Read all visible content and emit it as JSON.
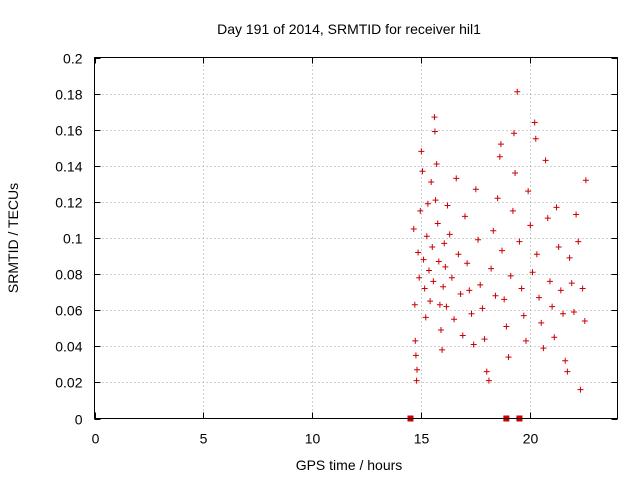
{
  "chart_data": {
    "type": "scatter",
    "title": "Day 191 of 2014, SRMTID for receiver hil1",
    "xlabel": "GPS time / hours",
    "ylabel": "SRMTID / TECUs",
    "xlim": [
      0,
      24
    ],
    "ylim": [
      0,
      0.2
    ],
    "xticks": [
      0,
      5,
      10,
      15,
      20
    ],
    "yticks": [
      0,
      0.02,
      0.04,
      0.06,
      0.08,
      0.1,
      0.12,
      0.14,
      0.16,
      0.18,
      0.2
    ],
    "xtick_labels": [
      "0",
      "5",
      "10",
      "15",
      "20"
    ],
    "ytick_labels": [
      "0",
      "0.02",
      "0.04",
      "0.06",
      "0.08",
      "0.1",
      "0.12",
      "0.14",
      "0.16",
      "0.18",
      "0.2"
    ],
    "grid": true,
    "marker": "+",
    "color": "#cc0000",
    "series": [
      {
        "name": "SRMTID",
        "data_range": {
          "x": [
            14.6,
            22.6
          ],
          "y": [
            0.016,
            0.181
          ]
        },
        "points": [
          [
            14.65,
            0.105
          ],
          [
            14.7,
            0.063
          ],
          [
            14.72,
            0.043
          ],
          [
            14.75,
            0.035
          ],
          [
            14.78,
            0.021
          ],
          [
            14.8,
            0.027
          ],
          [
            14.85,
            0.092
          ],
          [
            14.9,
            0.078
          ],
          [
            14.95,
            0.115
          ],
          [
            15.0,
            0.148
          ],
          [
            15.05,
            0.137
          ],
          [
            15.1,
            0.088
          ],
          [
            15.15,
            0.072
          ],
          [
            15.2,
            0.056
          ],
          [
            15.25,
            0.101
          ],
          [
            15.3,
            0.119
          ],
          [
            15.35,
            0.082
          ],
          [
            15.4,
            0.065
          ],
          [
            15.45,
            0.131
          ],
          [
            15.5,
            0.095
          ],
          [
            15.55,
            0.076
          ],
          [
            15.6,
            0.167
          ],
          [
            15.62,
            0.159
          ],
          [
            15.65,
            0.121
          ],
          [
            15.7,
            0.141
          ],
          [
            15.75,
            0.108
          ],
          [
            15.8,
            0.087
          ],
          [
            15.85,
            0.063
          ],
          [
            15.9,
            0.049
          ],
          [
            15.95,
            0.038
          ],
          [
            16.0,
            0.073
          ],
          [
            16.05,
            0.097
          ],
          [
            16.1,
            0.084
          ],
          [
            16.15,
            0.062
          ],
          [
            16.2,
            0.118
          ],
          [
            16.3,
            0.102
          ],
          [
            16.4,
            0.078
          ],
          [
            16.5,
            0.055
          ],
          [
            16.6,
            0.133
          ],
          [
            16.7,
            0.091
          ],
          [
            16.8,
            0.069
          ],
          [
            16.9,
            0.046
          ],
          [
            17.0,
            0.112
          ],
          [
            17.1,
            0.086
          ],
          [
            17.2,
            0.071
          ],
          [
            17.3,
            0.058
          ],
          [
            17.4,
            0.041
          ],
          [
            17.5,
            0.127
          ],
          [
            17.6,
            0.099
          ],
          [
            17.7,
            0.074
          ],
          [
            17.8,
            0.061
          ],
          [
            17.9,
            0.044
          ],
          [
            18.0,
            0.026
          ],
          [
            18.1,
            0.021
          ],
          [
            18.2,
            0.083
          ],
          [
            18.3,
            0.104
          ],
          [
            18.4,
            0.068
          ],
          [
            18.5,
            0.122
          ],
          [
            18.6,
            0.145
          ],
          [
            18.65,
            0.152
          ],
          [
            18.7,
            0.093
          ],
          [
            18.8,
            0.066
          ],
          [
            18.9,
            0.051
          ],
          [
            19.0,
            0.034
          ],
          [
            19.1,
            0.079
          ],
          [
            19.2,
            0.115
          ],
          [
            19.25,
            0.158
          ],
          [
            19.3,
            0.136
          ],
          [
            19.4,
            0.181
          ],
          [
            19.5,
            0.098
          ],
          [
            19.6,
            0.072
          ],
          [
            19.7,
            0.057
          ],
          [
            19.8,
            0.043
          ],
          [
            19.9,
            0.126
          ],
          [
            20.0,
            0.107
          ],
          [
            20.1,
            0.081
          ],
          [
            20.2,
            0.164
          ],
          [
            20.25,
            0.155
          ],
          [
            20.3,
            0.091
          ],
          [
            20.4,
            0.067
          ],
          [
            20.5,
            0.053
          ],
          [
            20.6,
            0.039
          ],
          [
            20.7,
            0.143
          ],
          [
            20.8,
            0.111
          ],
          [
            20.9,
            0.076
          ],
          [
            21.0,
            0.062
          ],
          [
            21.1,
            0.045
          ],
          [
            21.2,
            0.117
          ],
          [
            21.3,
            0.095
          ],
          [
            21.4,
            0.071
          ],
          [
            21.5,
            0.058
          ],
          [
            21.6,
            0.032
          ],
          [
            21.7,
            0.026
          ],
          [
            21.8,
            0.089
          ],
          [
            21.9,
            0.075
          ],
          [
            22.0,
            0.059
          ],
          [
            22.1,
            0.113
          ],
          [
            22.2,
            0.098
          ],
          [
            22.3,
            0.016
          ],
          [
            22.4,
            0.072
          ],
          [
            22.5,
            0.054
          ],
          [
            22.55,
            0.132
          ]
        ]
      }
    ],
    "gap_markers": {
      "y": 0,
      "x": [
        14.5,
        18.9,
        19.5
      ]
    }
  }
}
